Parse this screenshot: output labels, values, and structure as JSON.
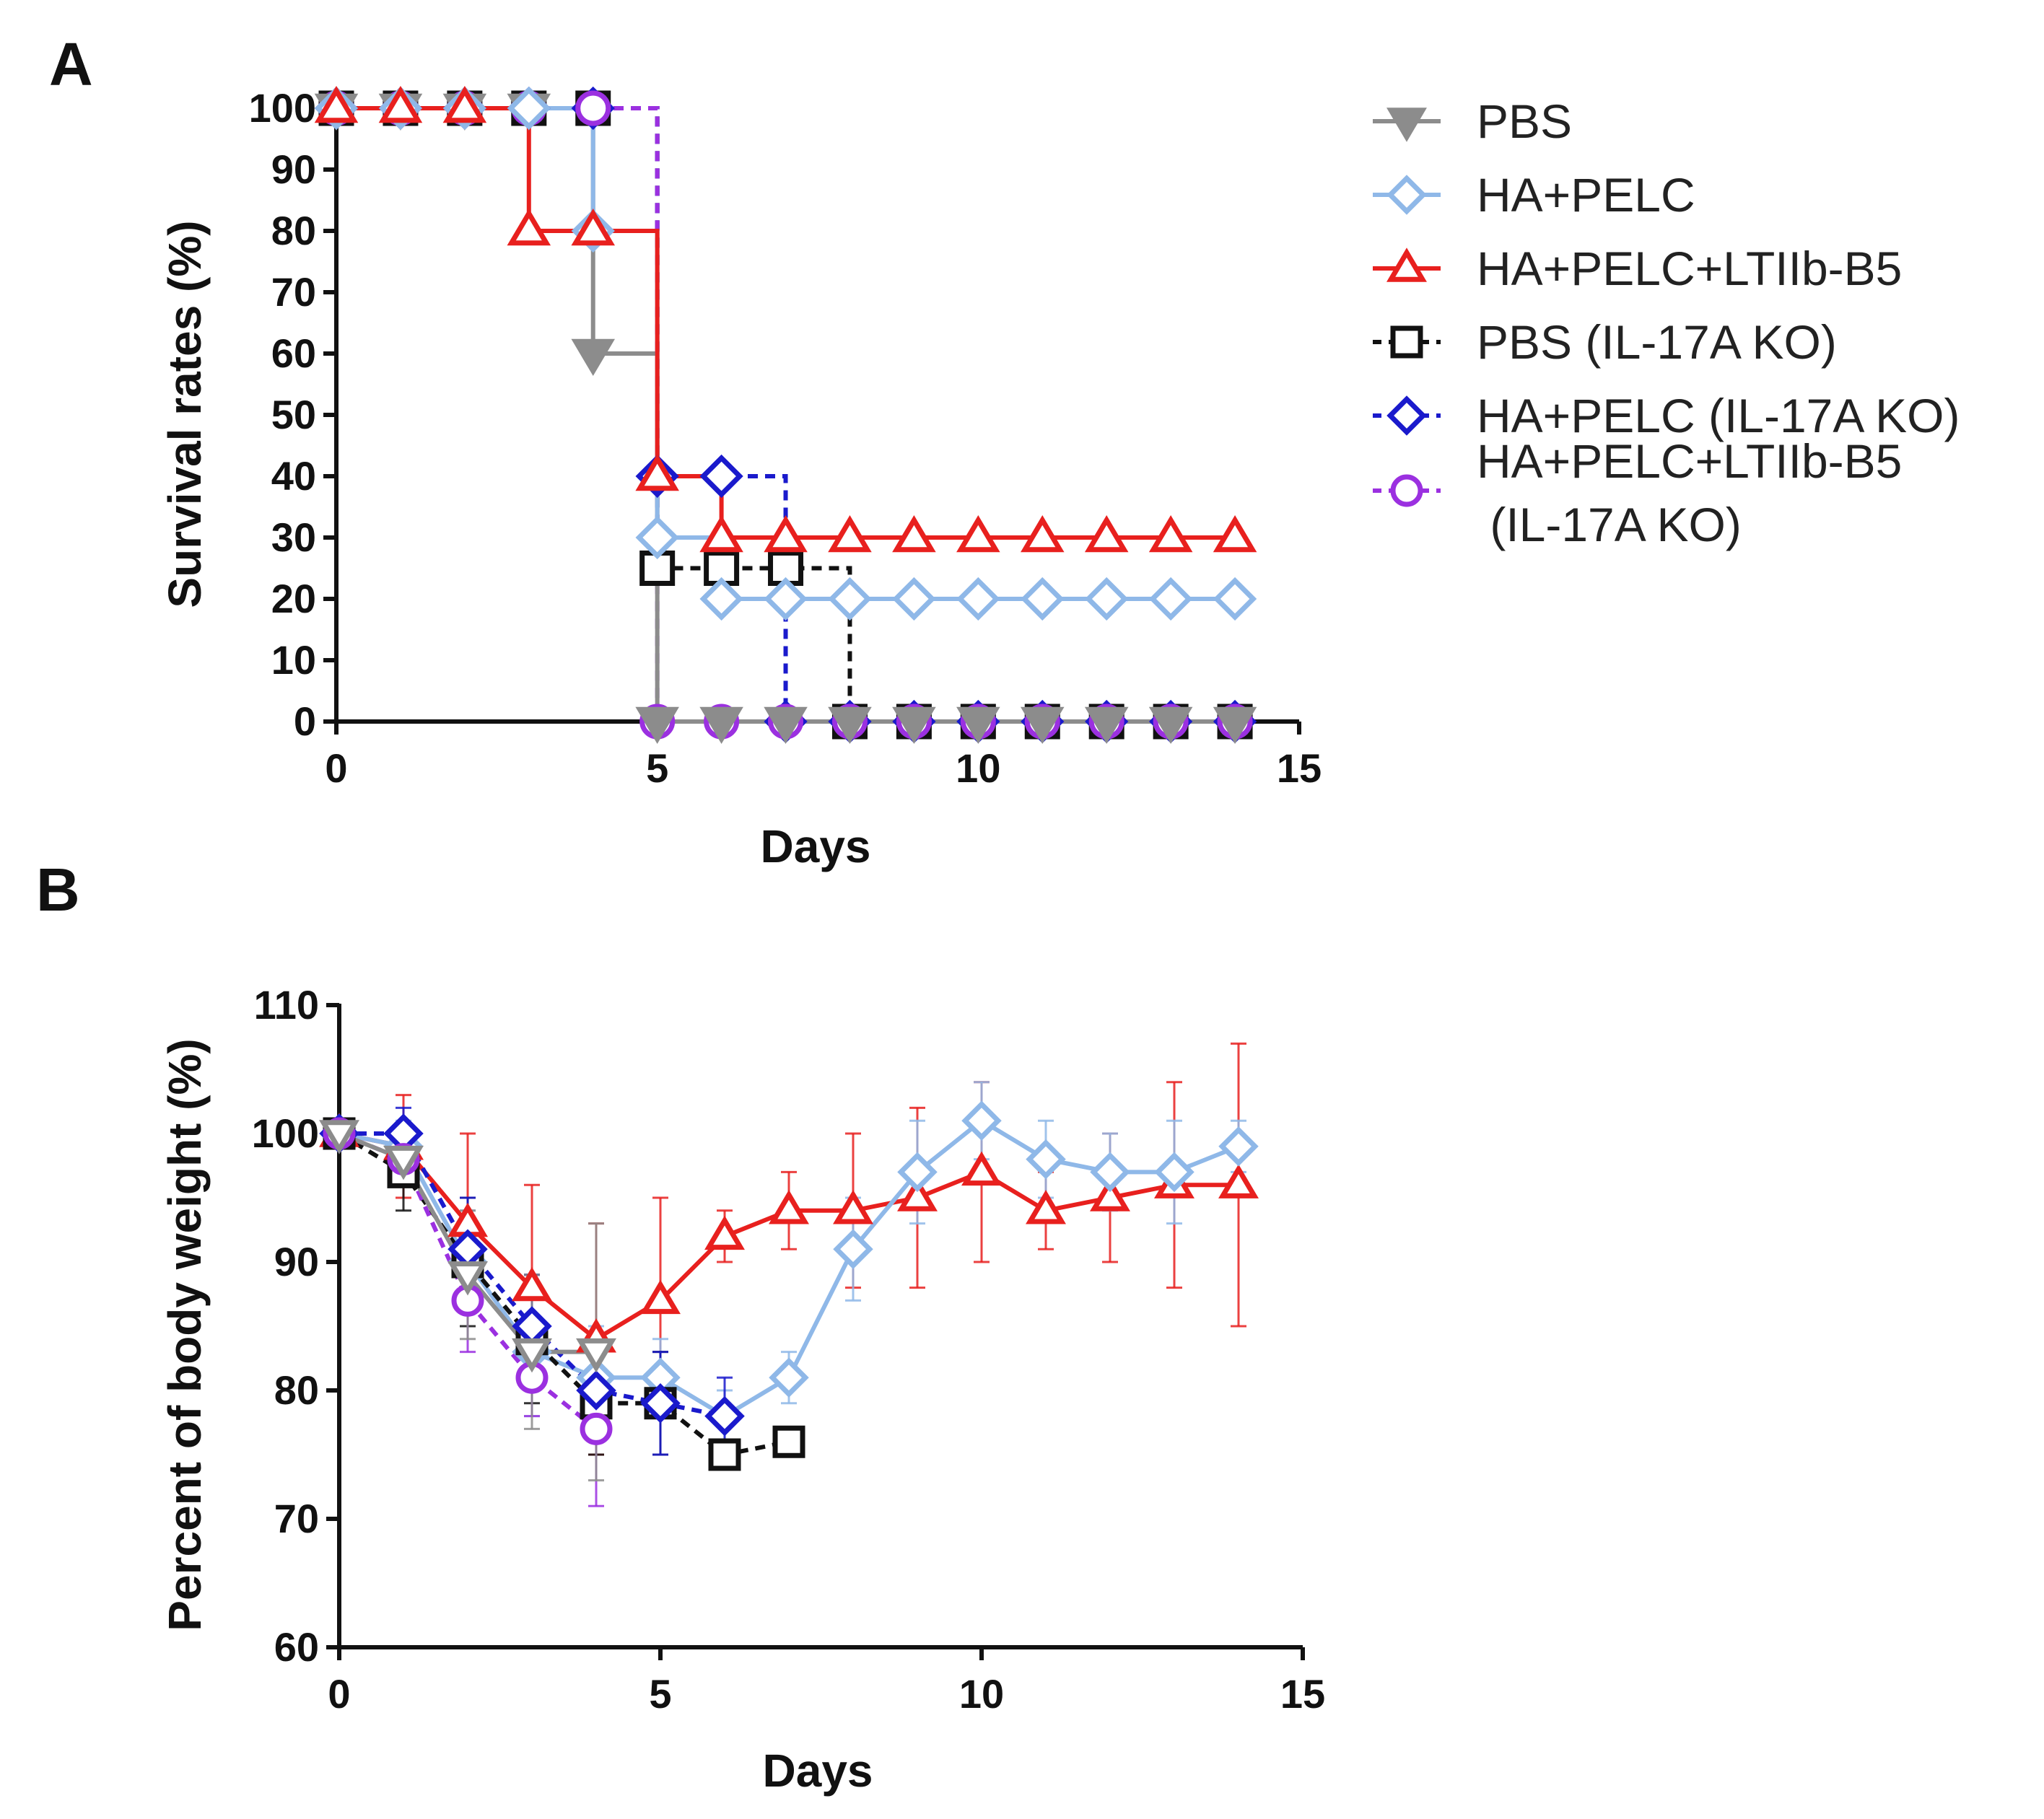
{
  "chart_data": [
    {
      "panel": "A",
      "type": "line",
      "subtype": "step-survival",
      "title": "",
      "xlabel": "Days",
      "ylabel": "Survival rates (%)",
      "xlim": [
        0,
        15
      ],
      "ylim": [
        0,
        100
      ],
      "xticks": [
        "0",
        "5",
        "10",
        "15"
      ],
      "yticks": [
        "0",
        "10",
        "20",
        "30",
        "40",
        "50",
        "60",
        "70",
        "80",
        "90",
        "100"
      ],
      "series": [
        {
          "name": "PBS",
          "key": "pbs",
          "x": [
            0,
            1,
            2,
            3,
            4,
            5,
            6,
            7,
            8,
            9,
            10,
            11,
            12,
            13,
            14
          ],
          "values": [
            100,
            100,
            100,
            100,
            60,
            0,
            0,
            0,
            0,
            0,
            0,
            0,
            0,
            0,
            0
          ]
        },
        {
          "name": "HA+PELC",
          "key": "hapelc",
          "x": [
            0,
            1,
            2,
            3,
            4,
            5,
            6,
            7,
            8,
            9,
            10,
            11,
            12,
            13,
            14
          ],
          "values": [
            100,
            100,
            100,
            100,
            80,
            30,
            20,
            20,
            20,
            20,
            20,
            20,
            20,
            20,
            20
          ]
        },
        {
          "name": "HA+PELC+LTIIb-B5",
          "key": "hapelcltiib",
          "x": [
            0,
            1,
            2,
            3,
            4,
            5,
            6,
            7,
            8,
            9,
            10,
            11,
            12,
            13,
            14
          ],
          "values": [
            100,
            100,
            100,
            80,
            80,
            40,
            30,
            30,
            30,
            30,
            30,
            30,
            30,
            30,
            30
          ]
        },
        {
          "name": "PBS (IL-17A KO)",
          "key": "pbsko",
          "x": [
            0,
            1,
            2,
            3,
            4,
            5,
            6,
            7,
            8,
            9,
            10,
            11,
            12,
            13,
            14
          ],
          "values": [
            100,
            100,
            100,
            100,
            100,
            25,
            25,
            25,
            0,
            0,
            0,
            0,
            0,
            0,
            0
          ]
        },
        {
          "name": "HA+PELC (IL-17A KO)",
          "key": "hapelcko",
          "x": [
            0,
            1,
            2,
            3,
            4,
            5,
            6,
            7,
            8,
            9,
            10,
            11,
            12,
            13,
            14
          ],
          "values": [
            100,
            100,
            100,
            100,
            100,
            40,
            40,
            0,
            0,
            0,
            0,
            0,
            0,
            0,
            0
          ]
        },
        {
          "name": "HA+PELC+LTIIb-B5\n(IL-17A KO)",
          "key": "hapelcltiibko",
          "x": [
            0,
            1,
            2,
            3,
            4,
            5,
            6,
            7,
            8,
            9,
            10,
            11,
            12,
            13,
            14
          ],
          "values": [
            100,
            100,
            100,
            100,
            100,
            0,
            0,
            0,
            0,
            0,
            0,
            0,
            0,
            0,
            0
          ]
        }
      ]
    },
    {
      "panel": "B",
      "type": "line",
      "title": "",
      "xlabel": "Days",
      "ylabel": "Percent of body weight (%)",
      "xlim": [
        0,
        15
      ],
      "ylim": [
        60,
        110
      ],
      "xticks": [
        "0",
        "5",
        "10",
        "15"
      ],
      "yticks": [
        "60",
        "70",
        "80",
        "90",
        "100",
        "110"
      ],
      "series": [
        {
          "name": "PBS",
          "key": "pbs",
          "x": [
            0,
            1,
            2,
            3,
            4
          ],
          "values": [
            100,
            98,
            89,
            83,
            83
          ],
          "err": [
            0,
            2,
            5,
            6,
            10
          ]
        },
        {
          "name": "HA+PELC",
          "key": "hapelc",
          "x": [
            0,
            1,
            2,
            3,
            4,
            5,
            6,
            7,
            8,
            9,
            10,
            11,
            12,
            13,
            14
          ],
          "values": [
            100,
            99,
            90,
            83,
            81,
            81,
            78,
            81,
            91,
            97,
            101,
            98,
            97,
            97,
            99
          ],
          "err": [
            0,
            2,
            4,
            5,
            4,
            3,
            2,
            2,
            4,
            4,
            3,
            3,
            3,
            4,
            2
          ]
        },
        {
          "name": "HA+PELC+LTIIb-B5",
          "key": "hapelcltiib",
          "x": [
            0,
            1,
            2,
            3,
            4,
            5,
            6,
            7,
            8,
            9,
            10,
            11,
            12,
            13,
            14
          ],
          "values": [
            100,
            99,
            93,
            88,
            84,
            87,
            92,
            94,
            94,
            95,
            97,
            94,
            95,
            96,
            96
          ],
          "err": [
            0,
            4,
            7,
            8,
            9,
            8,
            2,
            3,
            6,
            7,
            7,
            3,
            5,
            8,
            11
          ]
        },
        {
          "name": "PBS (IL-17A KO)",
          "key": "pbsko",
          "x": [
            0,
            1,
            2,
            3,
            4,
            5,
            6,
            7
          ],
          "values": [
            100,
            97,
            90,
            84,
            79,
            79,
            75,
            76
          ],
          "err": [
            0,
            3,
            5,
            5,
            4,
            4,
            0,
            0
          ]
        },
        {
          "name": "HA+PELC (IL-17A KO)",
          "key": "hapelcko",
          "x": [
            0,
            1,
            2,
            3,
            4,
            5,
            6
          ],
          "values": [
            100,
            100,
            91,
            85,
            80,
            79,
            78
          ],
          "err": [
            0,
            2,
            4,
            4,
            4,
            4,
            3
          ]
        },
        {
          "name": "HA+PELC+LTIIb-B5\n(IL-17A KO)",
          "key": "hapelcltiibko",
          "x": [
            0,
            1,
            2,
            3,
            4
          ],
          "values": [
            100,
            98,
            87,
            81,
            77
          ],
          "err": [
            0,
            2,
            4,
            3,
            6
          ]
        }
      ]
    }
  ],
  "panel_labels": {
    "a": "A",
    "b": "B"
  },
  "legend": [
    {
      "key": "pbs",
      "line1": "PBS",
      "line2": ""
    },
    {
      "key": "hapelc",
      "line1": "HA+PELC",
      "line2": ""
    },
    {
      "key": "hapelcltiib",
      "line1": "HA+PELC+LTIIb-B5",
      "line2": ""
    },
    {
      "key": "pbsko",
      "line1": "PBS (IL-17A KO)",
      "line2": ""
    },
    {
      "key": "hapelcko",
      "line1": "HA+PELC (IL-17A KO)",
      "line2": ""
    },
    {
      "key": "hapelcltiibko",
      "line1": "HA+PELC+LTIIb-B5",
      "line2": " (IL-17A KO)"
    }
  ],
  "series_styles": {
    "pbs": {
      "color": "#8c8c8c",
      "marker": "triangle-down",
      "dashed": false,
      "filled": true
    },
    "hapelc": {
      "color": "#8fb8e8",
      "marker": "diamond",
      "dashed": false,
      "filled": false
    },
    "hapelcltiib": {
      "color": "#e8201e",
      "marker": "triangle-up",
      "dashed": false,
      "filled": false
    },
    "pbsko": {
      "color": "#111111",
      "marker": "square",
      "dashed": true,
      "filled": false
    },
    "hapelcko": {
      "color": "#1a1acc",
      "marker": "diamond",
      "dashed": true,
      "filled": false
    },
    "hapelcltiibko": {
      "color": "#9b30e0",
      "marker": "circle",
      "dashed": true,
      "filled": false
    }
  }
}
